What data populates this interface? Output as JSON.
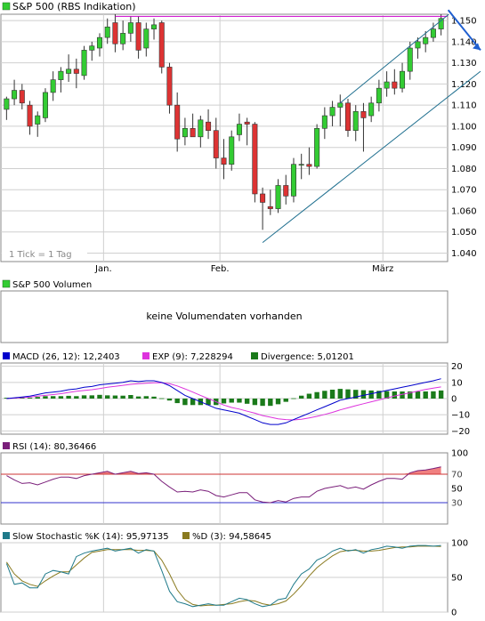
{
  "colors": {
    "up": "#33cc33",
    "down": "#dd3333",
    "frame": "#888888",
    "grid": "#cfcfcf",
    "resistance": "#cc00cc",
    "trend": "#1f6f8f",
    "arrow": "#1f5fd0",
    "macd": "#0000cc",
    "exp": "#dd33dd",
    "divergence": "#1a7a1a",
    "rsi": "#7a1f7a",
    "rsi_fill": "#f08080",
    "rsi_fill_low": "#7777ff",
    "stoch_k": "#1f7a8a",
    "stoch_d": "#8a7a1f"
  },
  "chart_data": [
    {
      "type": "candlestick",
      "title": "S&P 500 (RBS Indikation)",
      "footnote": "1 Tick = 1 Tag",
      "x_labels": [
        "Jan.",
        "Feb.",
        "März"
      ],
      "y_ticks": [
        "1.150",
        "1.140",
        "1.130",
        "1.120",
        "1.110",
        "1.100",
        "1.090",
        "1.080",
        "1.070",
        "1.060",
        "1.050",
        "1.040"
      ],
      "ylim": [
        1.036,
        1.153
      ],
      "resistance_level": 1.152,
      "trend_channel": {
        "lower": [
          [
            1.045,
            1.126
          ],
          [
            1.044,
            1.127
          ]
        ],
        "upper_start": 1.111,
        "upper_end": 1.153
      },
      "ohlc": [
        [
          1.108,
          1.114,
          1.103,
          1.113
        ],
        [
          1.113,
          1.122,
          1.11,
          1.117
        ],
        [
          1.117,
          1.12,
          1.108,
          1.111
        ],
        [
          1.11,
          1.112,
          1.096,
          1.1
        ],
        [
          1.101,
          1.107,
          1.095,
          1.105
        ],
        [
          1.104,
          1.118,
          1.102,
          1.116
        ],
        [
          1.116,
          1.126,
          1.112,
          1.122
        ],
        [
          1.122,
          1.128,
          1.116,
          1.126
        ],
        [
          1.125,
          1.134,
          1.121,
          1.127
        ],
        [
          1.127,
          1.132,
          1.118,
          1.125
        ],
        [
          1.124,
          1.138,
          1.122,
          1.136
        ],
        [
          1.136,
          1.14,
          1.131,
          1.138
        ],
        [
          1.137,
          1.144,
          1.133,
          1.142
        ],
        [
          1.142,
          1.151,
          1.139,
          1.147
        ],
        [
          1.149,
          1.153,
          1.135,
          1.139
        ],
        [
          1.139,
          1.15,
          1.136,
          1.144
        ],
        [
          1.144,
          1.152,
          1.14,
          1.149
        ],
        [
          1.149,
          1.152,
          1.132,
          1.136
        ],
        [
          1.137,
          1.149,
          1.133,
          1.146
        ],
        [
          1.146,
          1.151,
          1.141,
          1.148
        ],
        [
          1.149,
          1.15,
          1.125,
          1.128
        ],
        [
          1.128,
          1.13,
          1.106,
          1.11
        ],
        [
          1.11,
          1.116,
          1.088,
          1.094
        ],
        [
          1.095,
          1.104,
          1.091,
          1.099
        ],
        [
          1.099,
          1.106,
          1.095,
          1.095
        ],
        [
          1.095,
          1.105,
          1.09,
          1.103
        ],
        [
          1.102,
          1.108,
          1.094,
          1.098
        ],
        [
          1.098,
          1.104,
          1.08,
          1.085
        ],
        [
          1.085,
          1.094,
          1.075,
          1.082
        ],
        [
          1.082,
          1.098,
          1.079,
          1.095
        ],
        [
          1.096,
          1.106,
          1.093,
          1.101
        ],
        [
          1.102,
          1.104,
          1.091,
          1.101
        ],
        [
          1.101,
          1.102,
          1.064,
          1.068
        ],
        [
          1.068,
          1.071,
          1.051,
          1.064
        ],
        [
          1.062,
          1.07,
          1.058,
          1.061
        ],
        [
          1.061,
          1.075,
          1.059,
          1.072
        ],
        [
          1.072,
          1.077,
          1.063,
          1.067
        ],
        [
          1.067,
          1.085,
          1.064,
          1.082
        ],
        [
          1.082,
          1.087,
          1.075,
          1.082
        ],
        [
          1.082,
          1.09,
          1.077,
          1.081
        ],
        [
          1.081,
          1.101,
          1.08,
          1.099
        ],
        [
          1.099,
          1.109,
          1.094,
          1.105
        ],
        [
          1.105,
          1.112,
          1.1,
          1.109
        ],
        [
          1.109,
          1.115,
          1.1,
          1.111
        ],
        [
          1.111,
          1.113,
          1.095,
          1.098
        ],
        [
          1.098,
          1.11,
          1.093,
          1.107
        ],
        [
          1.107,
          1.111,
          1.088,
          1.104
        ],
        [
          1.105,
          1.114,
          1.102,
          1.111
        ],
        [
          1.111,
          1.122,
          1.107,
          1.118
        ],
        [
          1.118,
          1.126,
          1.114,
          1.121
        ],
        [
          1.121,
          1.127,
          1.115,
          1.118
        ],
        [
          1.118,
          1.13,
          1.116,
          1.126
        ],
        [
          1.126,
          1.14,
          1.122,
          1.137
        ],
        [
          1.137,
          1.142,
          1.132,
          1.14
        ],
        [
          1.139,
          1.145,
          1.135,
          1.142
        ],
        [
          1.142,
          1.149,
          1.14,
          1.146
        ],
        [
          1.146,
          1.153,
          1.143,
          1.151
        ]
      ]
    },
    {
      "type": "bar",
      "legend": "S&P 500 Volumen",
      "message": "keine Volumendaten vorhanden"
    },
    {
      "type": "line",
      "legend": [
        {
          "label": "MACD (26, 12): 12,2403"
        },
        {
          "label": "EXP (9): 7,228294"
        },
        {
          "label": "Divergence: 5,01201"
        }
      ],
      "y_ticks": [
        "20",
        "10",
        "0",
        "−10",
        "−20"
      ],
      "ylim": [
        -22,
        22
      ],
      "macd": [
        0,
        0.5,
        1,
        1.5,
        2.5,
        3.5,
        4,
        4.5,
        5.5,
        6,
        7,
        7.5,
        8.5,
        9,
        9.5,
        10,
        11,
        10.5,
        11,
        11,
        10,
        8,
        5,
        2,
        0,
        -2,
        -4,
        -6,
        -7,
        -8,
        -9,
        -11,
        -13,
        -15,
        -16,
        -16,
        -15,
        -13,
        -11,
        -9,
        -7,
        -5,
        -3,
        -1,
        0,
        1,
        2,
        3,
        4,
        5,
        6,
        7,
        8,
        9,
        10,
        11,
        12.24
      ],
      "exp": [
        0,
        0.3,
        0.6,
        1,
        1.5,
        2,
        2.5,
        3,
        3.8,
        4.5,
        5,
        5.5,
        6.2,
        7,
        7.6,
        8.2,
        8.8,
        9.2,
        9.5,
        9.8,
        9.8,
        9.2,
        7.8,
        6,
        4,
        2,
        0,
        -2,
        -4,
        -5.5,
        -6.5,
        -7.8,
        -9,
        -10.5,
        -11.5,
        -12.5,
        -13,
        -13.2,
        -12.8,
        -12,
        -11,
        -9.8,
        -8.5,
        -7,
        -5.7,
        -4.4,
        -3.2,
        -2,
        -0.8,
        0.4,
        1.6,
        2.6,
        3.6,
        4.6,
        5.6,
        6.5,
        7.23
      ],
      "divergence": [
        0.5,
        0.5,
        0.5,
        0.5,
        1,
        1.5,
        1.5,
        1.5,
        1.7,
        1.5,
        2,
        2,
        2.3,
        2,
        1.9,
        1.8,
        2.2,
        1.3,
        1.5,
        1.2,
        0.2,
        -1.2,
        -2.8,
        -4,
        -4,
        -4,
        -4,
        -4,
        -3,
        -2.5,
        -2.5,
        -3.2,
        -4,
        -4.5,
        -4.5,
        -3.5,
        -2,
        0.2,
        1.8,
        3,
        4,
        4.8,
        5.5,
        6,
        5.7,
        5.4,
        5.2,
        5,
        4.8,
        4.6,
        4.4,
        4.4,
        4.4,
        4.4,
        4.4,
        4.5,
        5.01
      ]
    },
    {
      "type": "line",
      "legend": "RSI (14): 80,36466",
      "y_ticks": [
        "100",
        "70",
        "50",
        "30"
      ],
      "ylim": [
        0,
        100
      ],
      "ref_lines": [
        70,
        30
      ],
      "values": [
        68,
        62,
        57,
        58,
        55,
        59,
        63,
        66,
        66,
        64,
        68,
        70,
        72,
        74,
        70,
        72,
        74,
        71,
        72,
        70,
        60,
        52,
        45,
        46,
        45,
        48,
        46,
        40,
        38,
        41,
        44,
        44,
        34,
        31,
        30,
        33,
        31,
        36,
        38,
        38,
        46,
        50,
        52,
        54,
        50,
        52,
        49,
        55,
        60,
        64,
        64,
        63,
        72,
        75,
        76,
        78,
        80.36
      ]
    },
    {
      "type": "line",
      "legend": [
        {
          "label": "Slow Stochastic %K (14): 95,97135"
        },
        {
          "label": "%D (3): 94,58645"
        }
      ],
      "y_ticks": [
        "100",
        "50",
        "0"
      ],
      "ylim": [
        0,
        100
      ],
      "k": [
        70,
        40,
        42,
        35,
        35,
        55,
        60,
        58,
        55,
        80,
        85,
        88,
        90,
        92,
        88,
        90,
        92,
        85,
        90,
        88,
        60,
        30,
        15,
        12,
        8,
        10,
        12,
        10,
        10,
        15,
        20,
        18,
        12,
        8,
        10,
        18,
        20,
        40,
        55,
        62,
        75,
        80,
        88,
        92,
        88,
        90,
        85,
        90,
        92,
        95,
        94,
        92,
        95,
        96,
        96,
        95,
        95.97
      ],
      "d": [
        72,
        55,
        45,
        40,
        37,
        45,
        52,
        58,
        58,
        68,
        78,
        86,
        88,
        90,
        90,
        90,
        90,
        89,
        89,
        88,
        75,
        55,
        32,
        18,
        11,
        9,
        10,
        10,
        11,
        12,
        15,
        17,
        16,
        12,
        10,
        12,
        16,
        26,
        38,
        52,
        64,
        73,
        81,
        87,
        89,
        89,
        88,
        88,
        89,
        91,
        93,
        94,
        94,
        95,
        95,
        95,
        94.59
      ]
    }
  ]
}
